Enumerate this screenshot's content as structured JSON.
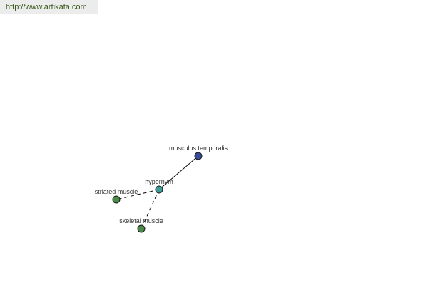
{
  "banner": {
    "url": "http://www.artikata.com"
  },
  "graph": {
    "nodes": [
      {
        "id": "musculus",
        "label": "musculus temporalis",
        "color": "#3b4a96"
      },
      {
        "id": "hypernym",
        "label": "hypernym",
        "color": "#3f9a96"
      },
      {
        "id": "striated",
        "label": "striated muscle",
        "color": "#4a8a46"
      },
      {
        "id": "skeletal",
        "label": "skeletal muscle",
        "color": "#4a8a46"
      }
    ],
    "edges": [
      {
        "from": "hypernym",
        "to": "musculus",
        "style": "solid"
      },
      {
        "from": "hypernym",
        "to": "striated",
        "style": "dashed"
      },
      {
        "from": "hypernym",
        "to": "skeletal",
        "style": "dashed"
      }
    ]
  }
}
